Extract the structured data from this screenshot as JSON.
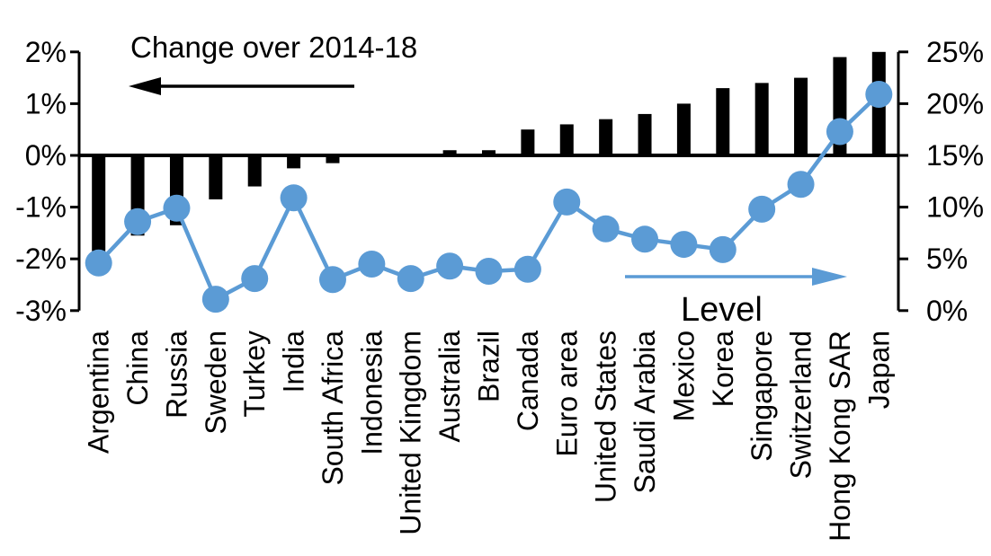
{
  "chart_data": {
    "type": "combo-bar-line-dual-axis",
    "categories": [
      "Argentina",
      "China",
      "Russia",
      "Sweden",
      "Turkey",
      "India",
      "South Africa",
      "Indonesia",
      "United Kingdom",
      "Australia",
      "Brazil",
      "Canada",
      "Euro area",
      "United States",
      "Saudi Arabia",
      "Mexico",
      "Korea",
      "Singapore",
      "Switzerland",
      "Hong Kong SAR",
      "Japan"
    ],
    "series": [
      {
        "name": "Change over 2014-18",
        "type": "bar",
        "axis": "left",
        "color": "#000000",
        "values": [
          -1.85,
          -1.55,
          -1.35,
          -0.85,
          -0.6,
          -0.25,
          -0.15,
          0,
          0,
          0.1,
          0.1,
          0.5,
          0.6,
          0.7,
          0.8,
          1.0,
          1.3,
          1.4,
          1.5,
          1.9,
          2.0
        ]
      },
      {
        "name": "Level",
        "type": "line",
        "axis": "right",
        "color": "#5B9BD5",
        "values": [
          4.6,
          8.6,
          9.9,
          1.1,
          3.1,
          10.9,
          3.0,
          4.5,
          3.1,
          4.3,
          3.8,
          4.0,
          10.5,
          7.9,
          6.9,
          6.4,
          5.9,
          9.8,
          12.2,
          17.3,
          20.9
        ]
      }
    ],
    "left_axis": {
      "min": -3,
      "max": 2,
      "tick_values": [
        2,
        1,
        0,
        -1,
        -2,
        -3
      ],
      "tick_labels": [
        "2%",
        "1%",
        "0%",
        "-1%",
        "-2%",
        "-3%"
      ]
    },
    "right_axis": {
      "min": 0,
      "max": 25,
      "tick_values": [
        25,
        20,
        15,
        10,
        5,
        0
      ],
      "tick_labels": [
        "25%",
        "20%",
        "15%",
        "10%",
        "5%",
        "0%"
      ]
    },
    "annotations": {
      "bar_label": "Change over 2014-18",
      "line_label": "Level"
    },
    "layout": {
      "grid": "off",
      "zero_line": true,
      "bar_arrow_direction": "left",
      "line_arrow_direction": "right"
    },
    "colors": {
      "bar": "#000000",
      "line": "#5B9BD5",
      "axis": "#000000",
      "text": "#000000",
      "background": "#ffffff"
    }
  }
}
